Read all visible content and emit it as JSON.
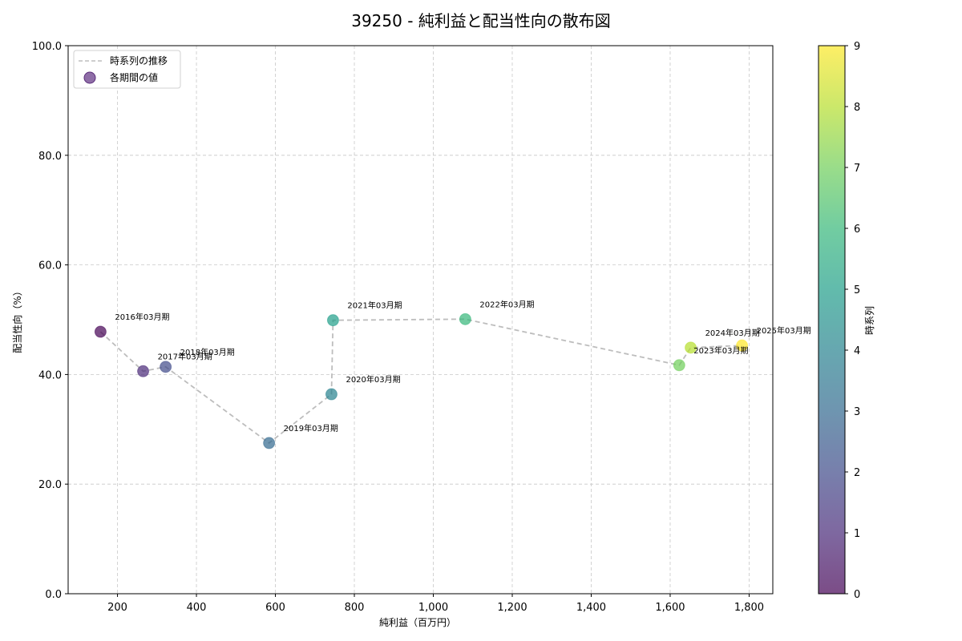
{
  "chart_data": {
    "type": "scatter",
    "title": "39250 - 純利益と配当性向の散布図",
    "xlabel": "純利益（百万円）",
    "ylabel": "配当性向（%）",
    "xlim": [
      75,
      1860
    ],
    "ylim": [
      0,
      100
    ],
    "xticks": [
      200,
      400,
      600,
      800,
      1000,
      1200,
      1400,
      1600,
      1800
    ],
    "xtick_labels": [
      "200",
      "400",
      "600",
      "800",
      "1,000",
      "1,200",
      "1,400",
      "1,600",
      "1,800"
    ],
    "yticks": [
      0,
      20,
      40,
      60,
      80,
      100
    ],
    "ytick_labels": [
      "0.0",
      "20.0",
      "40.0",
      "60.0",
      "80.0",
      "100.0"
    ],
    "grid": true,
    "legend": {
      "position": "upper left",
      "entries": [
        "時系列の推移",
        "各期間の値"
      ]
    },
    "colorbar": {
      "label": "時系列",
      "colormap": "viridis",
      "range": [
        0,
        9
      ],
      "ticks": [
        "0",
        "1",
        "2",
        "3",
        "4",
        "5",
        "6",
        "7",
        "8",
        "9"
      ]
    },
    "points": [
      {
        "label": "2016年03月期",
        "x": 157,
        "y": 47.8,
        "t": 0
      },
      {
        "label": "2017年03月期",
        "x": 265,
        "y": 40.6,
        "t": 1
      },
      {
        "label": "2018年03月期",
        "x": 322,
        "y": 41.4,
        "t": 2
      },
      {
        "label": "2019年03月期",
        "x": 584,
        "y": 27.5,
        "t": 3
      },
      {
        "label": "2020年03月期",
        "x": 742,
        "y": 36.4,
        "t": 4
      },
      {
        "label": "2021年03月期",
        "x": 746,
        "y": 49.9,
        "t": 5
      },
      {
        "label": "2022年03月期",
        "x": 1081,
        "y": 50.1,
        "t": 6
      },
      {
        "label": "2023年03月期",
        "x": 1623,
        "y": 41.7,
        "t": 7
      },
      {
        "label": "2024年03月期",
        "x": 1652,
        "y": 44.9,
        "t": 8
      },
      {
        "label": "2025年03月期",
        "x": 1782,
        "y": 45.3,
        "t": 9
      }
    ]
  },
  "colors": {
    "line": "#bdbdbd",
    "grid": "#c8c8c8",
    "legend_marker": "#6a3d8a",
    "viridis": [
      "#440154",
      "#482878",
      "#3e4989",
      "#31688e",
      "#26828e",
      "#1f9e89",
      "#35b779",
      "#6ece58",
      "#b5de2b",
      "#fde725"
    ]
  }
}
